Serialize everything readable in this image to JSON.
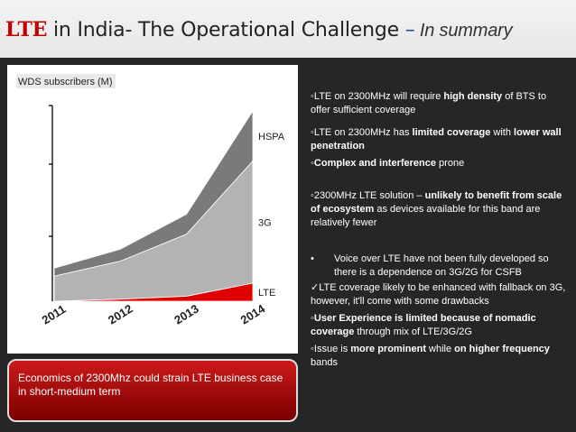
{
  "slide": {
    "title_lte": "LTE",
    "title_main": " in India- The Operational Challenge ",
    "title_dash": "–",
    "title_summary": " In summary"
  },
  "chart_data": {
    "type": "area",
    "title": "WDS subscribers (M)",
    "categories": [
      "2011",
      "2012",
      "2013",
      "2014"
    ],
    "series": [
      {
        "name": "LTE",
        "values": [
          0,
          2,
          5,
          18
        ],
        "color": "#e00000"
      },
      {
        "name": "3G",
        "values": [
          25,
          38,
          62,
          122
        ],
        "color": "#b3b3b3"
      },
      {
        "name": "HSPA",
        "values": [
          8,
          12,
          20,
          50
        ],
        "color": "#7a7a7a"
      }
    ],
    "ylim": [
      0,
      200
    ],
    "xlabel": "",
    "ylabel": "",
    "legend": "labels on right"
  },
  "bullets": [
    {
      "parts": [
        {
          "t": "◦LTE on 2300MHz will require ",
          "b": false
        },
        {
          "t": "high density",
          "b": true
        },
        {
          "t": " of BTS to offer sufficient coverage",
          "b": false
        }
      ]
    },
    {
      "parts": [
        {
          "t": "◦LTE on 2300MHz has ",
          "b": false
        },
        {
          "t": "limited coverage",
          "b": true
        },
        {
          "t": " with ",
          "b": false
        },
        {
          "t": "lower wall penetration",
          "b": true
        }
      ]
    },
    {
      "parts": [
        {
          "t": "◦",
          "b": false
        },
        {
          "t": "Complex and interference",
          "b": true
        },
        {
          "t": " prone",
          "b": false
        }
      ]
    },
    {
      "parts": [
        {
          "t": "◦2300MHz LTE solution – ",
          "b": false
        },
        {
          "t": "unlikely to benefit from scale of ecosystem",
          "b": true
        },
        {
          "t": " as devices available for this band are relatively fewer",
          "b": false
        }
      ]
    },
    {
      "parts": [
        {
          "t": "Voice over LTE have not been fully developed so there is a dependence on 3G/2G for CSFB",
          "b": false
        }
      ]
    },
    {
      "parts": [
        {
          "t": "✓LTE coverage likely to be enhanced with fallback on 3G, however, it'll come with some drawbacks",
          "b": false
        }
      ]
    },
    {
      "parts": [
        {
          "t": "◦",
          "b": false
        },
        {
          "t": "User Experience is limited because of nomadic coverage",
          "b": true
        },
        {
          "t": " through mix of LTE/3G/2G",
          "b": false
        }
      ]
    },
    {
      "parts": [
        {
          "t": "◦Issue is ",
          "b": false
        },
        {
          "t": "more prominent",
          "b": true
        },
        {
          "t": " while ",
          "b": false
        },
        {
          "t": "on higher frequency",
          "b": true
        },
        {
          "t": " bands",
          "b": false
        }
      ]
    }
  ],
  "voice_bullet_marker": "•",
  "economics": "Economics of 2300Mhz could strain LTE business case in short-medium term"
}
